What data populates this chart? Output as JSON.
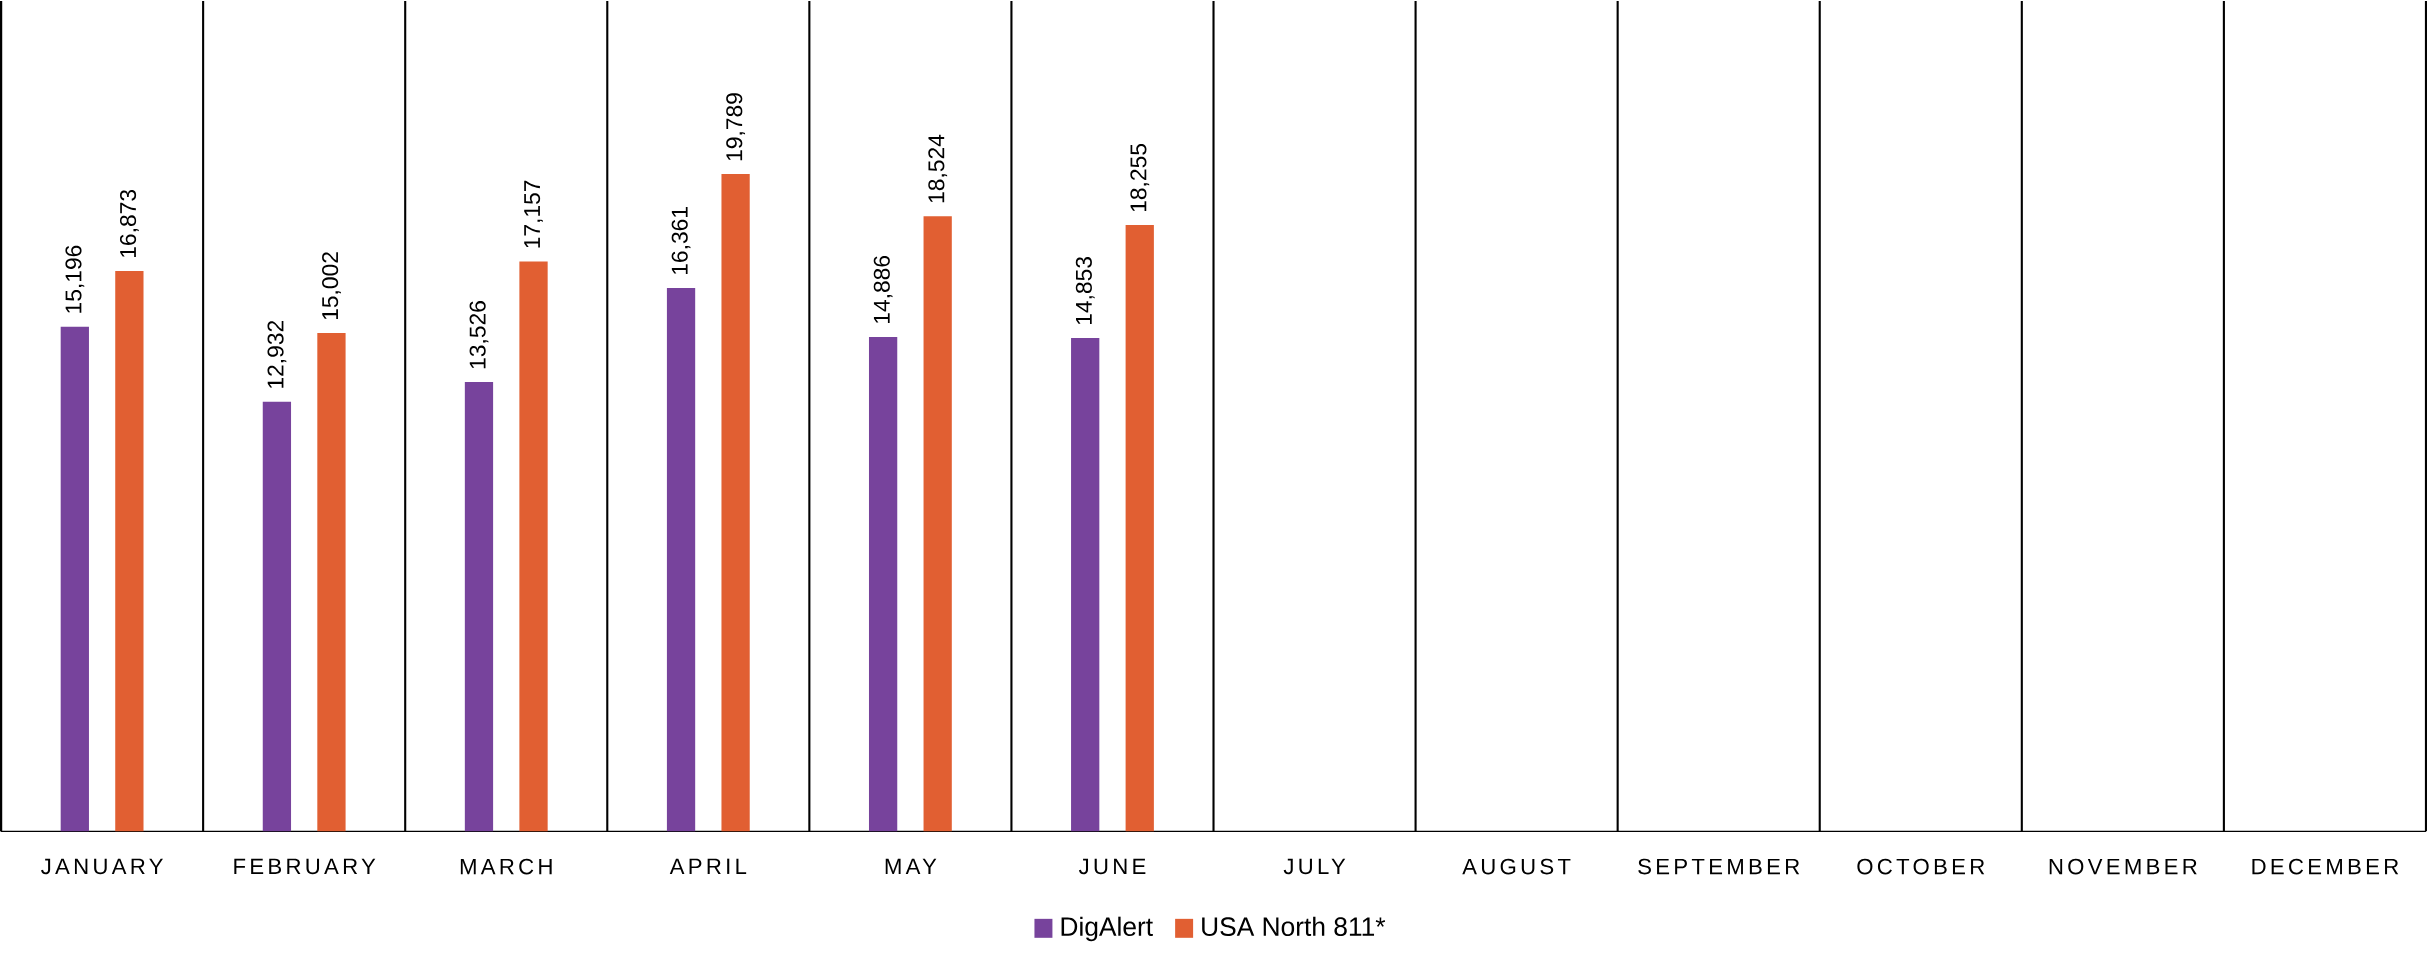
{
  "chart_data": {
    "type": "bar",
    "categories": [
      "JANUARY",
      "FEBRUARY",
      "MARCH",
      "APRIL",
      "MAY",
      "JUNE",
      "JULY",
      "AUGUST",
      "SEPTEMBER",
      "OCTOBER",
      "NOVEMBER",
      "DECEMBER"
    ],
    "series": [
      {
        "name": "DigAlert",
        "color": "#77439c",
        "values": [
          15196,
          12932,
          13526,
          16361,
          14886,
          14853,
          null,
          null,
          null,
          null,
          null,
          null
        ],
        "value_labels": [
          "15,196",
          "12,932",
          "13,526",
          "16,361",
          "14,886",
          "14,853",
          null,
          null,
          null,
          null,
          null,
          null
        ]
      },
      {
        "name": "USA North 811*",
        "color": "#e15f32",
        "values": [
          16873,
          15002,
          17157,
          19789,
          18524,
          18255,
          null,
          null,
          null,
          null,
          null,
          null
        ],
        "value_labels": [
          "16,873",
          "15,002",
          "17,157",
          "19,789",
          "18,524",
          "18,255",
          null,
          null,
          null,
          null,
          null,
          null
        ]
      }
    ],
    "ylim": [
      0,
      25000
    ],
    "tick_labels": "x",
    "grid": "x",
    "legend": "bottom"
  }
}
